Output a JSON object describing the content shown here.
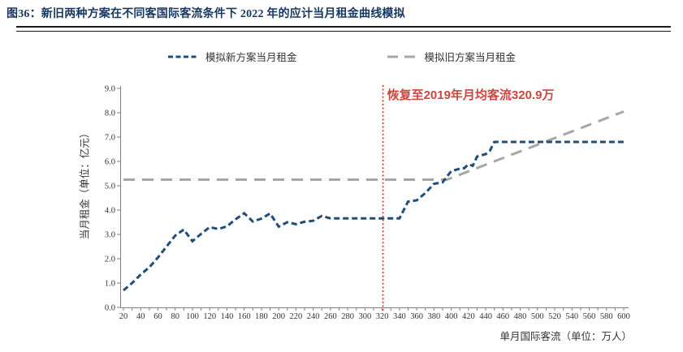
{
  "figure": {
    "title": "图36：新旧两种方案在不同客国际客流条件下 2022 年的应计当月租金曲线模拟"
  },
  "colors": {
    "title_text": "#17375e",
    "header_rule": "#1a1a1a",
    "new_line": "#1f4e79",
    "old_line": "#a6a6a6",
    "red_line": "#ef3126",
    "red_text": "#cf4540",
    "axis": "#7f7f7f",
    "tick_text": "#333333"
  },
  "legend": {
    "new_label": "模拟新方案当月租金",
    "old_label": "模拟旧方案当月租金"
  },
  "chart_data": {
    "type": "line",
    "title": "",
    "xlabel": "单月国际客流（单位：万人）",
    "ylabel": "当月租金（单位：亿元）",
    "xlim": [
      20,
      600
    ],
    "ylim": [
      0.0,
      9.0
    ],
    "grid": false,
    "legend_position": "top",
    "x_ticks": {
      "min": 20,
      "max": 600,
      "label_step": 20,
      "minor_step": 10
    },
    "y_ticks": {
      "min": 0,
      "max": 9,
      "step": 1,
      "decimals": 1
    },
    "series": [
      {
        "name": "模拟新方案当月租金",
        "color": "#1f4e79",
        "dash": "7 4",
        "width": 3,
        "points": [
          [
            20,
            0.7
          ],
          [
            30,
            1.0
          ],
          [
            40,
            1.35
          ],
          [
            50,
            1.65
          ],
          [
            60,
            2.05
          ],
          [
            70,
            2.5
          ],
          [
            80,
            2.95
          ],
          [
            90,
            3.2
          ],
          [
            100,
            2.72
          ],
          [
            110,
            3.02
          ],
          [
            120,
            3.3
          ],
          [
            130,
            3.22
          ],
          [
            140,
            3.33
          ],
          [
            150,
            3.62
          ],
          [
            160,
            3.87
          ],
          [
            170,
            3.53
          ],
          [
            180,
            3.65
          ],
          [
            190,
            3.86
          ],
          [
            200,
            3.32
          ],
          [
            210,
            3.5
          ],
          [
            220,
            3.42
          ],
          [
            230,
            3.52
          ],
          [
            240,
            3.56
          ],
          [
            250,
            3.76
          ],
          [
            260,
            3.66
          ],
          [
            280,
            3.66
          ],
          [
            300,
            3.66
          ],
          [
            320,
            3.66
          ],
          [
            340,
            3.66
          ],
          [
            350,
            4.35
          ],
          [
            360,
            4.4
          ],
          [
            370,
            4.7
          ],
          [
            380,
            5.08
          ],
          [
            390,
            5.14
          ],
          [
            400,
            5.6
          ],
          [
            410,
            5.7
          ],
          [
            415,
            5.72
          ],
          [
            420,
            5.88
          ],
          [
            425,
            5.82
          ],
          [
            430,
            6.2
          ],
          [
            440,
            6.3
          ],
          [
            445,
            6.45
          ],
          [
            450,
            6.8
          ],
          [
            500,
            6.8
          ],
          [
            550,
            6.8
          ],
          [
            600,
            6.8
          ]
        ]
      },
      {
        "name": "模拟旧方案当月租金",
        "color": "#a6a6a6",
        "dash": "14 9",
        "width": 3,
        "points": [
          [
            20,
            5.25
          ],
          [
            395,
            5.25
          ],
          [
            600,
            8.05
          ]
        ]
      }
    ],
    "annotation": {
      "text": "恢复至2019年月均客流320.9万",
      "x": 320.9
    }
  }
}
